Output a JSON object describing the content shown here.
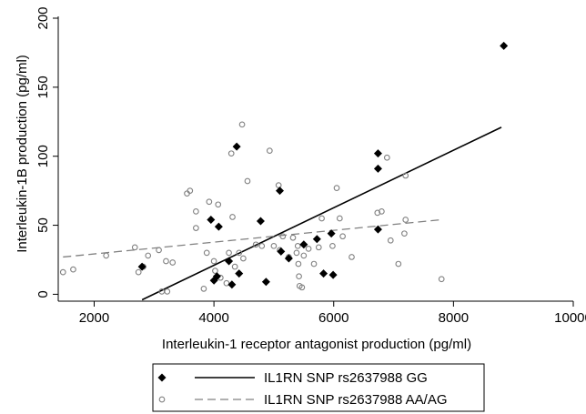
{
  "chart_data": {
    "type": "scatter",
    "xlabel": "Interleukin-1 receptor antagonist production (pg/ml)",
    "ylabel": "Interleukin-1B production (pg/ml)",
    "xlim": [
      1400,
      10000
    ],
    "ylim": [
      -5,
      200
    ],
    "xticks": [
      2000,
      4000,
      6000,
      8000,
      10000
    ],
    "yticks": [
      0,
      50,
      100,
      150,
      200
    ],
    "grid": false,
    "legend_position": "bottom",
    "series": [
      {
        "name": "IL1RN SNP rs2637988 GG",
        "marker": "filled-diamond",
        "color": "#000000",
        "points": [
          [
            2800,
            20
          ],
          [
            3950,
            54
          ],
          [
            4000,
            10
          ],
          [
            4050,
            13
          ],
          [
            4080,
            49
          ],
          [
            4250,
            24
          ],
          [
            4300,
            7
          ],
          [
            4380,
            107
          ],
          [
            4420,
            15
          ],
          [
            4780,
            53
          ],
          [
            4870,
            9
          ],
          [
            5100,
            75
          ],
          [
            5120,
            31
          ],
          [
            5250,
            26
          ],
          [
            5500,
            36
          ],
          [
            5720,
            40
          ],
          [
            5830,
            15
          ],
          [
            5960,
            44
          ],
          [
            5990,
            14
          ],
          [
            6740,
            102
          ],
          [
            6740,
            91
          ],
          [
            6740,
            47
          ],
          [
            8840,
            180
          ]
        ],
        "fit": {
          "style": "solid",
          "x": [
            2800,
            8800
          ],
          "y": [
            -4,
            121
          ]
        }
      },
      {
        "name": "IL1RN SNP rs2637988 AA/AG",
        "marker": "hollow-circle",
        "color": "#808080",
        "points": [
          [
            1480,
            16
          ],
          [
            1650,
            18
          ],
          [
            2200,
            28
          ],
          [
            2680,
            34
          ],
          [
            2740,
            16
          ],
          [
            2820,
            20
          ],
          [
            2900,
            28
          ],
          [
            3080,
            32
          ],
          [
            3130,
            2
          ],
          [
            3200,
            24
          ],
          [
            3220,
            2
          ],
          [
            3310,
            23
          ],
          [
            3550,
            73
          ],
          [
            3600,
            75
          ],
          [
            3700,
            60
          ],
          [
            3700,
            48
          ],
          [
            3830,
            4
          ],
          [
            3880,
            30
          ],
          [
            3920,
            67
          ],
          [
            4000,
            24
          ],
          [
            4020,
            17
          ],
          [
            4070,
            65
          ],
          [
            4110,
            12
          ],
          [
            4210,
            8
          ],
          [
            4250,
            30
          ],
          [
            4290,
            102
          ],
          [
            4310,
            56
          ],
          [
            4350,
            20
          ],
          [
            4420,
            30
          ],
          [
            4470,
            123
          ],
          [
            4490,
            26
          ],
          [
            4560,
            82
          ],
          [
            4700,
            36
          ],
          [
            4800,
            35
          ],
          [
            4930,
            104
          ],
          [
            5000,
            35
          ],
          [
            5080,
            79
          ],
          [
            5100,
            32
          ],
          [
            5150,
            42
          ],
          [
            5250,
            27
          ],
          [
            5320,
            41
          ],
          [
            5380,
            30
          ],
          [
            5400,
            35
          ],
          [
            5410,
            22
          ],
          [
            5420,
            13
          ],
          [
            5430,
            6
          ],
          [
            5470,
            5
          ],
          [
            5500,
            28
          ],
          [
            5580,
            33
          ],
          [
            5670,
            22
          ],
          [
            5750,
            34
          ],
          [
            5800,
            55
          ],
          [
            5980,
            35
          ],
          [
            6050,
            77
          ],
          [
            6100,
            55
          ],
          [
            6150,
            42
          ],
          [
            6300,
            27
          ],
          [
            6730,
            59
          ],
          [
            6800,
            60
          ],
          [
            6890,
            99
          ],
          [
            6950,
            39
          ],
          [
            7080,
            22
          ],
          [
            7180,
            44
          ],
          [
            7200,
            54
          ],
          [
            7200,
            86
          ],
          [
            7800,
            11
          ]
        ],
        "fit": {
          "style": "dashed",
          "x": [
            1480,
            7800
          ],
          "y": [
            27,
            54
          ]
        }
      }
    ]
  }
}
